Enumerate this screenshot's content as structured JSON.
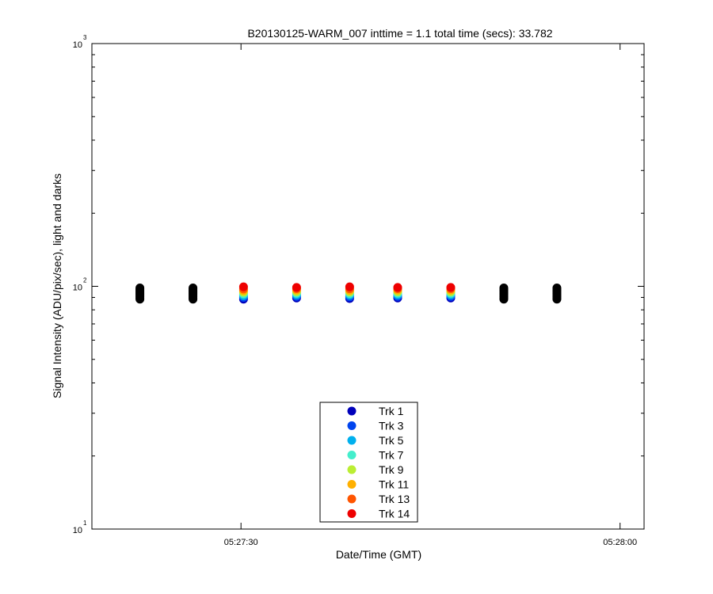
{
  "chart_data": {
    "type": "scatter",
    "title": "B20130125-WARM_007 inttime = 1.1 total time (secs): 33.782",
    "xlabel": "Date/Time (GMT)",
    "ylabel": "Signal Intensity (ADU/pix/sec), light and darks",
    "yscale": "log",
    "ylim": [
      10,
      1000
    ],
    "xlim": [
      "05:27:18.2",
      "05:28:01.9"
    ],
    "x_ticks": [
      "05:27:30",
      "05:28:00"
    ],
    "y_ticks": [
      {
        "base": "10",
        "exp": "1",
        "value": 10
      },
      {
        "base": "10",
        "exp": "2",
        "value": 100
      },
      {
        "base": "10",
        "exp": "3",
        "value": 1000
      }
    ],
    "grid": false,
    "legend_position": "bottom-center",
    "dark_frames": {
      "color": "#000000",
      "times": [
        "05:27:22.0",
        "05:27:26.2",
        "05:27:50.8",
        "05:27:55.0"
      ],
      "values": [
        88.5,
        89.5,
        90.5,
        91.5,
        92.5,
        93.5,
        94.5,
        95.5,
        96.5,
        97.5,
        98.5
      ]
    },
    "light_times": [
      "05:27:30.2",
      "05:27:34.4",
      "05:27:38.6",
      "05:27:42.4",
      "05:27:46.6"
    ],
    "series": [
      {
        "name": "Trk 1",
        "color": "#0000bb",
        "values": [
          88.5,
          89.5,
          89.0,
          89.5,
          89.5
        ]
      },
      {
        "name": "Trk 3",
        "color": "#0044ee",
        "values": [
          90.0,
          90.8,
          90.4,
          90.8,
          90.8
        ]
      },
      {
        "name": "Trk 5",
        "color": "#00b0ee",
        "values": [
          91.5,
          92.2,
          91.9,
          92.2,
          92.2
        ]
      },
      {
        "name": "Trk 7",
        "color": "#44eecc",
        "values": [
          93.0,
          93.6,
          93.3,
          93.6,
          93.6
        ]
      },
      {
        "name": "Trk 9",
        "color": "#bbee33",
        "values": [
          94.5,
          95.0,
          94.8,
          95.0,
          95.0
        ]
      },
      {
        "name": "Trk 11",
        "color": "#ffb000",
        "values": [
          96.0,
          96.5,
          96.2,
          96.5,
          96.5
        ]
      },
      {
        "name": "Trk 13",
        "color": "#ff5500",
        "values": [
          97.5,
          97.8,
          97.7,
          97.8,
          97.8
        ]
      },
      {
        "name": "Trk 14",
        "color": "#ee0000",
        "values": [
          99.5,
          99.0,
          99.5,
          99.0,
          99.0
        ]
      }
    ]
  }
}
